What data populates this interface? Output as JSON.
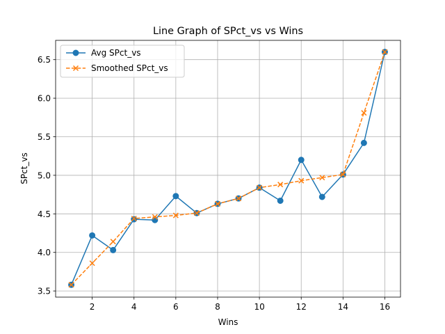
{
  "chart_data": {
    "type": "line",
    "title": "Line Graph of SPct_vs vs Wins",
    "xlabel": "Wins",
    "ylabel": "SPct_vs",
    "xlim": [
      0.25,
      16.75
    ],
    "ylim": [
      3.42,
      6.75
    ],
    "xticks": [
      2,
      4,
      6,
      8,
      10,
      12,
      14,
      16
    ],
    "yticks": [
      3.5,
      4.0,
      4.5,
      5.0,
      5.5,
      6.0,
      6.5
    ],
    "ytick_labels": [
      "3.5",
      "4.0",
      "4.5",
      "5.0",
      "5.5",
      "6.0",
      "6.5"
    ],
    "grid": true,
    "legend_position": "upper-left",
    "x": [
      1,
      2,
      3,
      4,
      5,
      6,
      7,
      8,
      9,
      10,
      11,
      12,
      13,
      14,
      15,
      16
    ],
    "series": [
      {
        "name": "Avg SPct_vs",
        "color": "#1f77b4",
        "line_style": "solid",
        "marker": "circle",
        "values": [
          3.58,
          4.22,
          4.03,
          4.43,
          4.42,
          4.73,
          4.51,
          4.63,
          4.7,
          4.84,
          4.67,
          5.2,
          4.72,
          5.01,
          5.42,
          6.6
        ]
      },
      {
        "name": "Smoothed SPct_vs",
        "color": "#ff7f0e",
        "line_style": "dashed",
        "marker": "x",
        "values": [
          3.58,
          3.86,
          4.14,
          4.44,
          4.46,
          4.48,
          4.51,
          4.63,
          4.7,
          4.84,
          4.88,
          4.93,
          4.97,
          5.01,
          5.81,
          6.6
        ]
      }
    ]
  }
}
